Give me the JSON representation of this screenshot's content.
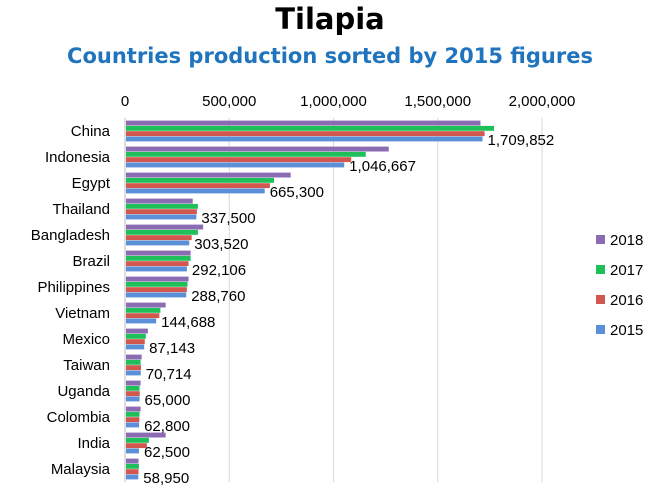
{
  "chart_data": {
    "type": "bar",
    "orientation": "horizontal",
    "title": "Tilapia",
    "subtitle": "Countries production sorted by 2015 figures",
    "categories": [
      "China",
      "Indonesia",
      "Egypt",
      "Thailand",
      "Bangladesh",
      "Brazil",
      "Philippines",
      "Vietnam",
      "Mexico",
      "Taiwan",
      "Uganda",
      "Colombia",
      "India",
      "Malaysia"
    ],
    "xlim": [
      0,
      2000000
    ],
    "x_ticks": [
      "0",
      "500,000",
      "1,000,000",
      "1,500,000",
      "2,000,000"
    ],
    "x_axis_position": "top",
    "grid": true,
    "legend_position": "right",
    "series": [
      {
        "name": "2018",
        "color": "#8b6bb1",
        "values": [
          1700000,
          1260000,
          790000,
          320000,
          370000,
          310000,
          300000,
          190000,
          105000,
          75000,
          70000,
          70000,
          190000,
          60000
        ]
      },
      {
        "name": "2017",
        "color": "#1fbf5a",
        "values": [
          1765000,
          1150000,
          710000,
          345000,
          345000,
          310000,
          295000,
          165000,
          95000,
          70000,
          65000,
          65000,
          110000,
          62000
        ]
      },
      {
        "name": "2016",
        "color": "#d2574f",
        "values": [
          1720000,
          1080000,
          690000,
          340000,
          315000,
          300000,
          292000,
          160000,
          90000,
          72000,
          66000,
          64000,
          100000,
          60000
        ]
      },
      {
        "name": "2015",
        "color": "#5b8fd8",
        "values": [
          1709852,
          1046667,
          665300,
          337500,
          303520,
          292106,
          288760,
          144688,
          87143,
          70714,
          65000,
          62800,
          62500,
          58950
        ]
      }
    ],
    "data_labels": [
      "1,709,852",
      "1,046,667",
      "665,300",
      "337,500",
      "303,520",
      "292,106",
      "288,760",
      "144,688",
      "87,143",
      "70,714",
      "65,000",
      "62,800",
      "62,500",
      "58,950"
    ]
  }
}
